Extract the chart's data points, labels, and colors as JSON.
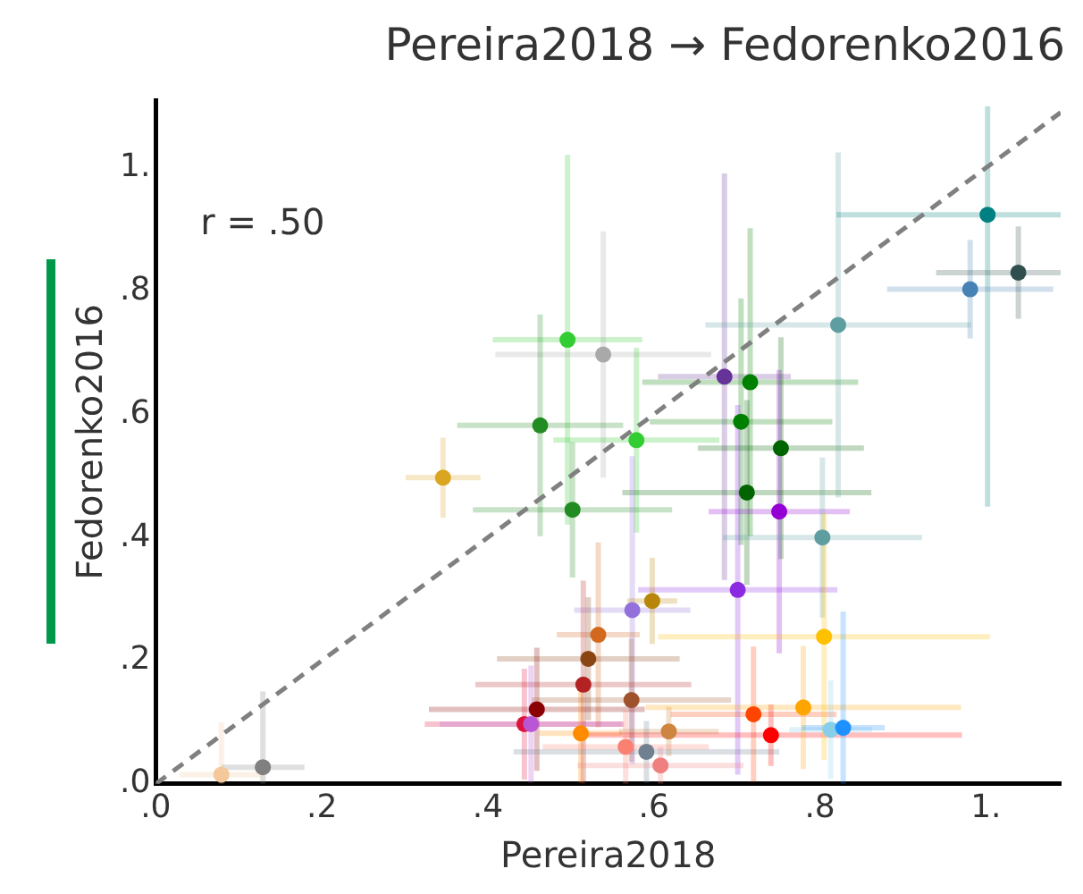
{
  "chart_data": {
    "type": "scatter",
    "title": "Pereira2018 → Fedorenko2016",
    "xlabel": "Pereira2018",
    "ylabel": "Fedorenko2016",
    "annotations": [
      "r = .50"
    ],
    "xlim": [
      0,
      1.09
    ],
    "ylim": [
      0,
      1.11
    ],
    "xticks": [
      {
        "value": 0,
        "label": ".0"
      },
      {
        "value": 0.2,
        "label": ".2"
      },
      {
        "value": 0.4,
        "label": ".4"
      },
      {
        "value": 0.6,
        "label": ".6"
      },
      {
        "value": 0.8,
        "label": ".8"
      },
      {
        "value": 1,
        "label": "1."
      }
    ],
    "yticks": [
      {
        "value": 0,
        "label": ".0"
      },
      {
        "value": 0.2,
        "label": ".2"
      },
      {
        "value": 0.4,
        "label": ".4"
      },
      {
        "value": 0.6,
        "label": ".6"
      },
      {
        "value": 0.8,
        "label": ".8"
      },
      {
        "value": 1,
        "label": "1."
      }
    ],
    "grid": false,
    "legend": false,
    "series": [
      {
        "type": "scatter",
        "marker": "circle",
        "x": [
          0.129,
          0.079,
          0.346,
          0.502,
          0.496,
          0.539,
          0.463,
          0.579,
          0.685,
          0.716,
          0.705,
          0.753,
          0.712,
          0.751,
          0.803,
          0.822,
          1.002,
          0.981,
          1.039,
          0.701,
          0.574,
          0.598,
          0.533,
          0.521,
          0.515,
          0.459,
          0.444,
          0.452,
          0.512,
          0.573,
          0.618,
          0.566,
          0.591,
          0.608,
          0.72,
          0.741,
          0.78,
          0.805,
          0.813,
          0.828
        ],
        "values": [
          0.027,
          0.015,
          0.497,
          0.445,
          0.721,
          0.697,
          0.582,
          0.558,
          0.661,
          0.652,
          0.588,
          0.545,
          0.473,
          0.442,
          0.4,
          0.745,
          0.924,
          0.803,
          0.83,
          0.315,
          0.282,
          0.297,
          0.242,
          0.203,
          0.161,
          0.121,
          0.097,
          0.097,
          0.082,
          0.136,
          0.085,
          0.06,
          0.052,
          0.03,
          0.113,
          0.079,
          0.124,
          0.239,
          0.088,
          0.091
        ],
        "colors": [
          "#808080",
          "#f4c89a",
          "#daa520",
          "#228b22",
          "#32cd32",
          "#a9a9a9",
          "#228b22",
          "#32cd32",
          "#663399",
          "#008000",
          "#008000",
          "#006400",
          "#006400",
          "#9400d3",
          "#5f9ea0",
          "#5f9ea0",
          "#008080",
          "#4682b4",
          "#2f4f4f",
          "#8a2be2",
          "#9370db",
          "#b8860b",
          "#d2691e",
          "#8b4513",
          "#b22222",
          "#8b0000",
          "#dc143c",
          "#ba55d3",
          "#ff8c00",
          "#a0522d",
          "#cd853f",
          "#fa8072",
          "#708090",
          "#f08080",
          "#ff4500",
          "#ff0000",
          "#ffa500",
          "#ffc000",
          "#87ceeb",
          "#1e90ff"
        ],
        "errors": [
          [
            0,
            0.15
          ],
          [
            0,
            0.1
          ],
          0.065,
          0.11,
          0.3,
          0.2,
          0.18,
          0.15,
          0.33,
          0.25,
          0.2,
          0.18,
          0.15,
          0.23,
          0.13,
          0.28,
          [
            0.45,
            1.1
          ],
          0.08,
          0.075,
          0.3,
          0.25,
          0.07,
          0.15,
          0.1,
          [
            0,
            0.33
          ],
          0.1,
          0.09,
          0.095,
          0.08,
          0.1,
          0.04,
          0.06,
          0.05,
          0.03,
          0.11,
          0.05,
          0.1,
          0.2,
          0.08,
          [
            0,
            0.28
          ]
        ],
        "xerrors": [
          0.05,
          0.05,
          0.045,
          0.12,
          0.09,
          0.13,
          0.1,
          0.1,
          0.08,
          0.13,
          0.11,
          0.1,
          0.15,
          0.085,
          0.12,
          0.16,
          [
            0.82,
            1.09
          ],
          0.1,
          [
            0.94,
            1.09
          ],
          0.12,
          0.07,
          0.03,
          0.05,
          0.11,
          0.13,
          0.13,
          0.12,
          0.11,
          0.05,
          0.12,
          0.06,
          0.1,
          0.16,
          0.1,
          0.1,
          0.23,
          0.19,
          0.2,
          0.05,
          0.05
        ]
      },
      {
        "type": "line",
        "color": "#808080",
        "line_style": "dashed",
        "marker": "none",
        "x": [
          0,
          1.09
        ],
        "values": [
          0,
          1.09
        ]
      }
    ]
  }
}
